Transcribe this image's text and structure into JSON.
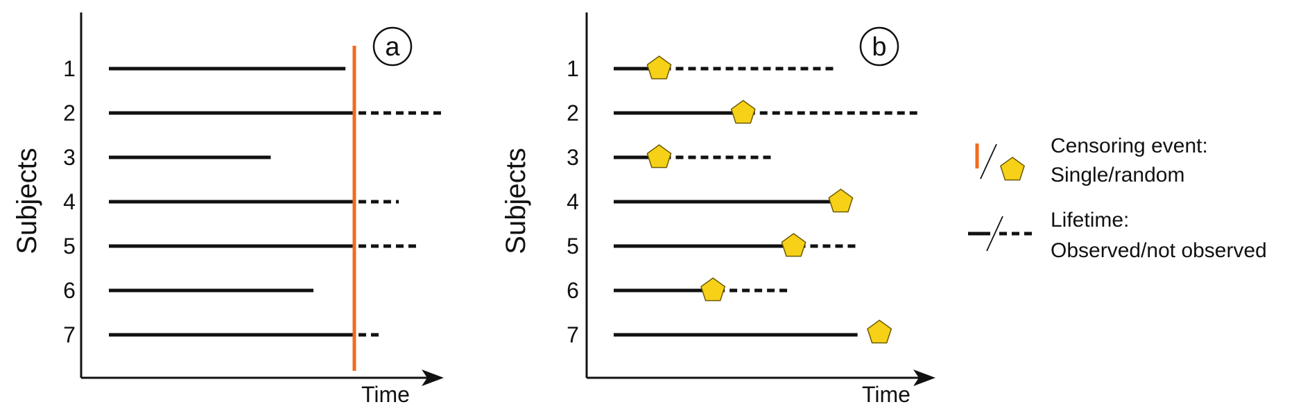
{
  "colors": {
    "axis": "#111111",
    "line": "#111111",
    "censor_line": "#f26b1d",
    "pentagon_fill": "#f7d117",
    "pentagon_stroke": "#6b5a00"
  },
  "panels": [
    {
      "id": "a",
      "label": "a",
      "ylabel": "Subjects",
      "xlabel": "Time",
      "censoring": "single",
      "censor_time": 0.69,
      "subjects": [
        {
          "label": "1",
          "observed_end": 0.665,
          "lifetime_end": 0.665
        },
        {
          "label": "2",
          "observed_end": 0.69,
          "lifetime_end": 0.94
        },
        {
          "label": "3",
          "observed_end": 0.455,
          "lifetime_end": 0.455
        },
        {
          "label": "4",
          "observed_end": 0.69,
          "lifetime_end": 0.815
        },
        {
          "label": "5",
          "observed_end": 0.69,
          "lifetime_end": 0.865
        },
        {
          "label": "6",
          "observed_end": 0.575,
          "lifetime_end": 0.575
        },
        {
          "label": "7",
          "observed_end": 0.69,
          "lifetime_end": 0.765
        }
      ]
    },
    {
      "id": "b",
      "label": "b",
      "ylabel": "Subjects",
      "xlabel": "Time",
      "censoring": "random",
      "subjects": [
        {
          "label": "1",
          "observed_end": 0.135,
          "lifetime_end": 0.665
        },
        {
          "label": "2",
          "observed_end": 0.385,
          "lifetime_end": 0.905
        },
        {
          "label": "3",
          "observed_end": 0.135,
          "lifetime_end": 0.48
        },
        {
          "label": "4",
          "observed_end": 0.675,
          "lifetime_end": 0.705
        },
        {
          "label": "5",
          "observed_end": 0.535,
          "lifetime_end": 0.73
        },
        {
          "label": "6",
          "observed_end": 0.295,
          "lifetime_end": 0.53
        },
        {
          "label": "7",
          "observed_end": 0.725,
          "lifetime_end": 0.725,
          "censor_at": 0.79
        }
      ]
    }
  ],
  "legend": {
    "censoring_title": "Censoring event:",
    "censoring_desc": "Single/random",
    "lifetime_title": "Lifetime:",
    "lifetime_desc": "Observed/not observed",
    "censoring_icons": [
      "orange-tick-icon",
      "pentagon-icon"
    ],
    "lifetime_icons": [
      "solid-line-icon",
      "dashed-line-icon"
    ]
  }
}
